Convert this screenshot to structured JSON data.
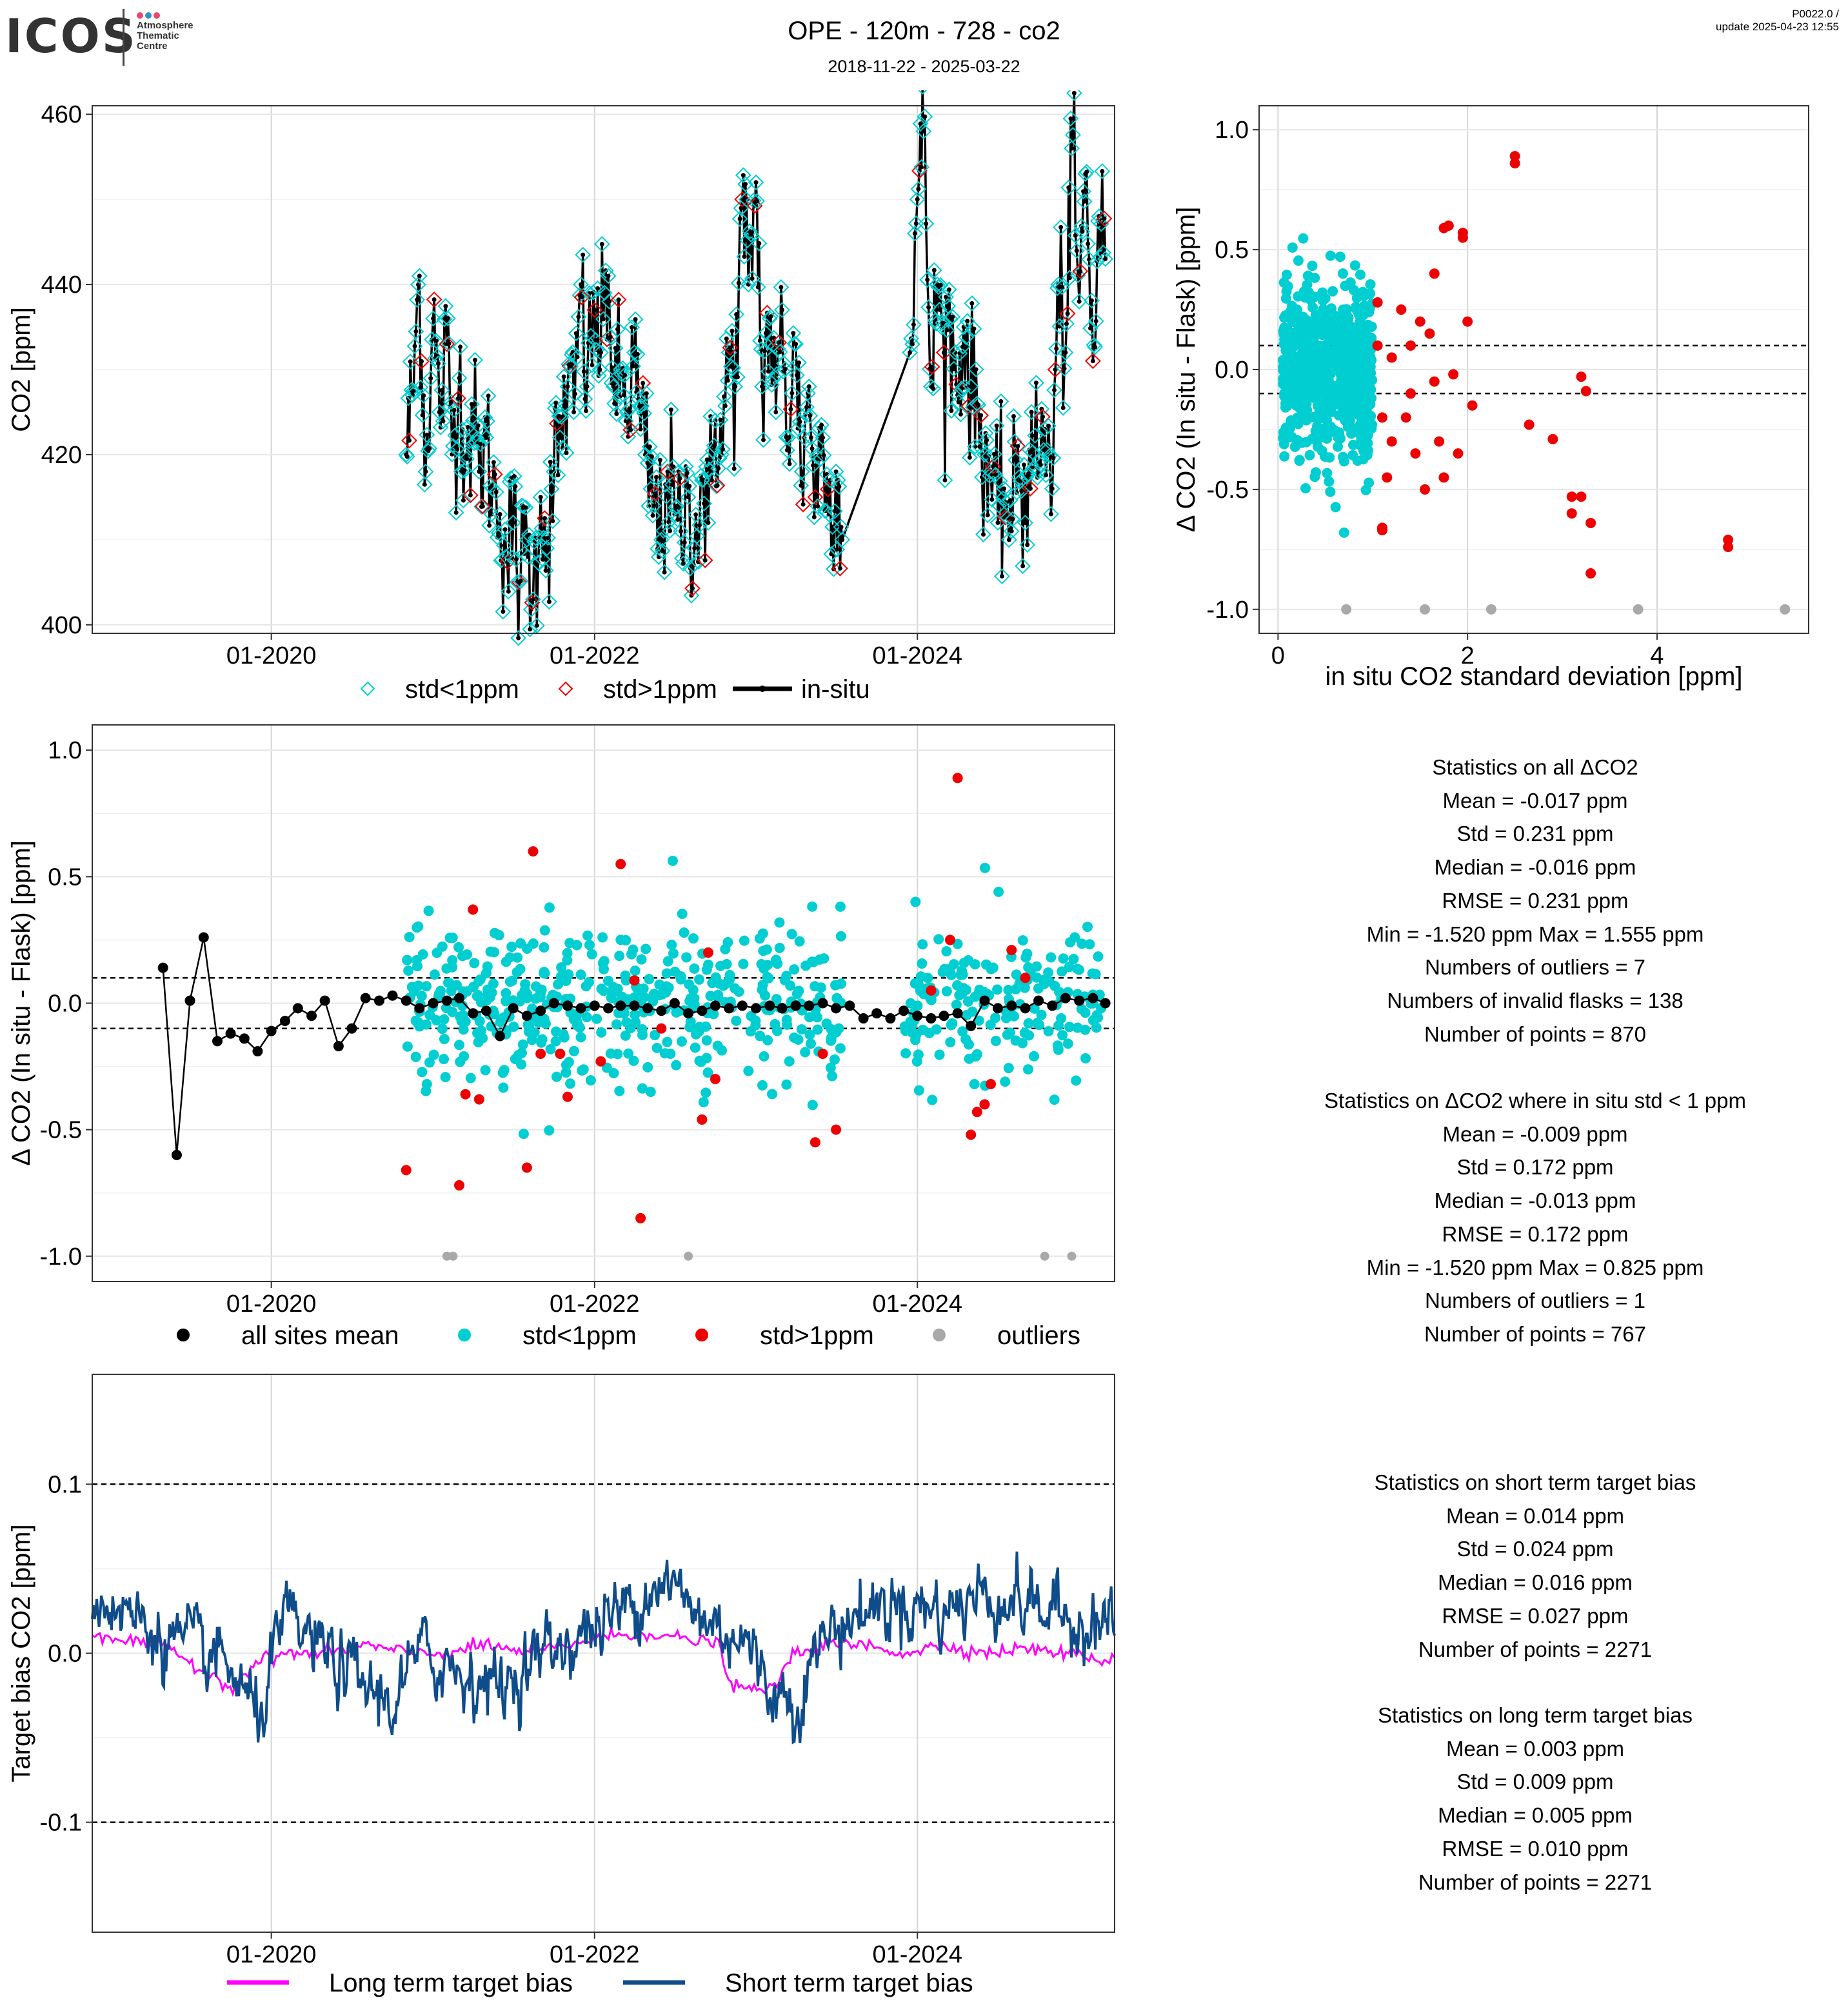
{
  "header": {
    "logo": "ICOS",
    "logo_sub_1": "Atmosphere",
    "logo_sub_2": "Thematic",
    "logo_sub_3": "Centre",
    "title": "OPE - 120m - 728 - co2",
    "dates": "2018-11-22 - 2025-03-22",
    "version": "P0022.0 /",
    "update": "update  2025-04-23 12:55"
  },
  "colors": {
    "std_lt1": "#00CED1",
    "std_gt1": "#EE0000",
    "outlier": "#A9A9A9",
    "insitu": "#000000",
    "long_term": "#FF00FF",
    "short_term": "#0F4C8A"
  },
  "chart_data": [
    {
      "id": "co2_timeseries",
      "type": "line",
      "ylabel": "CO2 [ppm]",
      "xlabel": "",
      "x_ticks": [
        "01-2020",
        "01-2022",
        "01-2024"
      ],
      "y_ticks": [
        "400",
        "420",
        "440",
        "460"
      ],
      "ylim": [
        399,
        461
      ],
      "xlim": [
        "2018-11-22",
        "2025-03-22"
      ],
      "legend": [
        "std<1ppm",
        "std>1ppm",
        "in-situ"
      ],
      "legend_position": "bottom",
      "series": [
        {
          "name": "in-situ",
          "x": [
            "2020-11-01",
            "2020-11-15",
            "2020-12-01",
            "2020-12-15",
            "2021-01-01",
            "2021-01-15",
            "2021-02-01",
            "2021-02-15",
            "2021-03-01",
            "2021-03-15",
            "2021-04-01",
            "2021-04-15",
            "2021-05-01",
            "2021-05-15",
            "2021-06-01",
            "2021-06-15",
            "2021-07-01",
            "2021-07-15",
            "2021-08-01",
            "2021-08-15",
            "2021-09-01",
            "2021-09-15",
            "2021-10-01",
            "2021-10-15",
            "2021-11-01",
            "2021-11-15",
            "2021-12-01",
            "2021-12-15",
            "2022-01-01",
            "2022-01-15",
            "2022-02-01",
            "2022-02-15",
            "2022-03-01",
            "2022-03-15",
            "2022-04-01",
            "2022-04-15",
            "2022-05-01",
            "2022-05-15",
            "2022-06-01",
            "2022-06-15",
            "2022-07-01",
            "2022-07-15",
            "2022-08-01",
            "2022-08-15",
            "2022-09-01",
            "2022-09-15",
            "2022-10-01",
            "2022-10-15",
            "2022-11-01",
            "2022-11-15",
            "2022-12-01",
            "2022-12-15",
            "2023-01-01",
            "2023-01-15",
            "2023-02-01",
            "2023-02-15",
            "2023-03-01",
            "2023-03-15",
            "2023-04-01",
            "2023-04-15",
            "2023-05-01",
            "2023-05-15",
            "2023-06-01",
            "2023-06-15",
            "2023-07-01",
            "2023-07-15",
            "2023-12-15",
            "2024-01-01",
            "2024-01-15",
            "2024-02-01",
            "2024-02-15",
            "2024-03-01",
            "2024-03-15",
            "2024-04-01",
            "2024-04-15",
            "2024-05-01",
            "2024-05-15",
            "2024-06-01",
            "2024-06-15",
            "2024-07-01",
            "2024-07-15",
            "2024-08-01",
            "2024-08-15",
            "2024-09-01",
            "2024-09-15",
            "2024-10-01",
            "2024-10-15",
            "2024-11-01",
            "2024-11-15",
            "2024-12-01",
            "2024-12-15",
            "2025-01-01",
            "2025-01-15",
            "2025-02-01",
            "2025-02-15",
            "2025-03-01"
          ],
          "y": [
            420,
            427,
            441,
            418,
            436,
            425,
            433,
            421,
            429,
            420,
            424,
            418,
            422,
            416,
            413,
            408,
            412,
            405,
            410,
            403,
            415,
            409,
            418,
            422,
            428,
            425,
            440,
            428,
            437,
            432,
            441,
            426,
            430,
            425,
            432,
            423,
            419,
            414,
            410,
            418,
            413,
            411,
            415,
            409,
            417,
            412,
            424,
            420,
            432,
            428,
            450,
            440,
            452,
            428,
            436,
            425,
            437,
            422,
            433,
            418,
            428,
            415,
            422,
            413,
            418,
            410,
            432,
            450,
            458,
            428,
            440,
            432,
            436,
            427,
            435,
            428,
            426,
            420,
            418,
            412,
            416,
            411,
            421,
            412,
            425,
            418,
            423,
            416,
            440,
            432,
            456,
            438,
            453,
            431,
            448,
            443
          ]
        }
      ]
    },
    {
      "id": "delta_vs_std_scatter",
      "type": "scatter",
      "xlabel": "in situ CO2 standard deviation [ppm]",
      "ylabel": "Δ CO2 (In situ - Flask) [ppm]",
      "x_ticks": [
        "0",
        "2",
        "4"
      ],
      "y_ticks": [
        "-1.0",
        "-0.5",
        "0.0",
        "0.5",
        "1.0"
      ],
      "xlim": [
        -0.2,
        5.6
      ],
      "ylim": [
        -1.1,
        1.1
      ],
      "reference_lines": [
        0.1,
        -0.1
      ],
      "series": [
        {
          "name": "std>1ppm",
          "points": [
            [
              1.05,
              0.1
            ],
            [
              1.1,
              -0.2
            ],
            [
              1.15,
              -0.45
            ],
            [
              1.2,
              -0.3
            ],
            [
              1.3,
              0.25
            ],
            [
              1.35,
              -0.2
            ],
            [
              1.4,
              0.1
            ],
            [
              1.45,
              -0.35
            ],
            [
              1.5,
              0.2
            ],
            [
              1.55,
              -0.5
            ],
            [
              1.6,
              0.15
            ],
            [
              1.65,
              -0.05
            ],
            [
              1.7,
              -0.3
            ],
            [
              1.75,
              -0.45
            ],
            [
              1.8,
              0.6
            ],
            [
              1.85,
              -0.02
            ],
            [
              1.9,
              -0.35
            ],
            [
              1.95,
              0.55
            ],
            [
              2.0,
              0.2
            ],
            [
              2.05,
              -0.15
            ],
            [
              1.1,
              -0.67
            ],
            [
              1.2,
              0.05
            ],
            [
              1.4,
              -0.1
            ],
            [
              1.65,
              0.4
            ],
            [
              2.5,
              0.89
            ],
            [
              2.5,
              0.86
            ],
            [
              2.65,
              -0.23
            ],
            [
              2.9,
              -0.29
            ],
            [
              3.1,
              -0.53
            ],
            [
              3.1,
              -0.6
            ],
            [
              3.2,
              -0.53
            ],
            [
              3.2,
              -0.03
            ],
            [
              3.25,
              -0.09
            ],
            [
              3.3,
              -0.64
            ],
            [
              3.3,
              -0.85
            ],
            [
              4.75,
              -0.71
            ],
            [
              4.75,
              -0.74
            ],
            [
              1.75,
              0.59
            ],
            [
              1.95,
              0.57
            ],
            [
              1.1,
              -0.66
            ],
            [
              1.05,
              0.28
            ]
          ]
        },
        {
          "name": "outliers",
          "points": [
            [
              0.72,
              -1.0
            ],
            [
              1.55,
              -1.0
            ],
            [
              2.25,
              -1.0
            ],
            [
              3.8,
              -1.0
            ],
            [
              5.35,
              -1.0
            ]
          ]
        }
      ]
    },
    {
      "id": "delta_timeseries",
      "type": "scatter",
      "ylabel": "Δ CO2 (In situ - Flask) [ppm]",
      "xlabel": "",
      "x_ticks": [
        "01-2020",
        "01-2022",
        "01-2024"
      ],
      "y_ticks": [
        "-1.0",
        "-0.5",
        "0.0",
        "0.5",
        "1.0"
      ],
      "ylim": [
        -1.1,
        1.1
      ],
      "reference_lines": [
        0.1,
        -0.1
      ],
      "legend": [
        "all sites mean",
        "std<1ppm",
        "std>1ppm",
        "outliers"
      ],
      "legend_position": "bottom",
      "series": [
        {
          "name": "all sites mean",
          "x": [
            "2019-05-01",
            "2019-06-01",
            "2019-07-01",
            "2019-08-01",
            "2019-09-01",
            "2019-10-01",
            "2019-11-01",
            "2019-12-01",
            "2020-01-01",
            "2020-02-01",
            "2020-03-01",
            "2020-04-01",
            "2020-05-01",
            "2020-06-01",
            "2020-07-01",
            "2020-08-01",
            "2020-09-01",
            "2020-10-01",
            "2020-11-01",
            "2020-12-01",
            "2021-01-01",
            "2021-02-01",
            "2021-03-01",
            "2021-04-01",
            "2021-05-01",
            "2021-06-01",
            "2021-07-01",
            "2021-08-01",
            "2021-09-01",
            "2021-10-01",
            "2021-11-01",
            "2021-12-01",
            "2022-01-01",
            "2022-02-01",
            "2022-03-01",
            "2022-04-01",
            "2022-05-01",
            "2022-06-01",
            "2022-07-01",
            "2022-08-01",
            "2022-09-01",
            "2022-10-01",
            "2022-11-01",
            "2022-12-01",
            "2023-01-01",
            "2023-02-01",
            "2023-03-01",
            "2023-04-01",
            "2023-05-01",
            "2023-06-01",
            "2023-07-01",
            "2023-08-01",
            "2023-09-01",
            "2023-10-01",
            "2023-11-01",
            "2023-12-01",
            "2024-01-01",
            "2024-02-01",
            "2024-03-01",
            "2024-04-01",
            "2024-05-01",
            "2024-06-01",
            "2024-07-01",
            "2024-08-01",
            "2024-09-01",
            "2024-10-01",
            "2024-11-01",
            "2024-12-01",
            "2025-01-01",
            "2025-02-01",
            "2025-03-01"
          ],
          "y": [
            0.14,
            -0.6,
            0.01,
            0.26,
            -0.15,
            -0.12,
            -0.14,
            -0.19,
            -0.11,
            -0.07,
            -0.02,
            -0.05,
            0.01,
            -0.17,
            -0.1,
            0.02,
            0.01,
            0.03,
            0.01,
            -0.02,
            0.0,
            0.01,
            0.02,
            -0.04,
            -0.03,
            -0.13,
            -0.02,
            -0.05,
            -0.03,
            0.0,
            -0.01,
            -0.02,
            -0.01,
            -0.02,
            -0.01,
            -0.01,
            -0.02,
            -0.03,
            0.0,
            -0.04,
            -0.03,
            -0.01,
            -0.02,
            -0.01,
            -0.02,
            -0.01,
            -0.02,
            -0.01,
            -0.01,
            0.0,
            -0.02,
            -0.01,
            -0.06,
            -0.04,
            -0.06,
            -0.03,
            -0.05,
            -0.06,
            -0.05,
            -0.04,
            -0.09,
            0.01,
            -0.02,
            -0.01,
            -0.02,
            0.01,
            -0.01,
            0.02,
            0.01,
            0.02,
            0.0
          ]
        },
        {
          "name": "std>1ppm",
          "x": [
            "2020-11-01",
            "2021-03-01",
            "2021-03-15",
            "2021-04-01",
            "2021-04-15",
            "2021-08-01",
            "2021-08-15",
            "2021-09-01",
            "2021-10-15",
            "2021-11-01",
            "2022-01-15",
            "2022-03-01",
            "2022-04-01",
            "2022-04-15",
            "2022-06-01",
            "2022-09-01",
            "2022-09-15",
            "2022-10-01",
            "2023-05-15",
            "2023-06-01",
            "2023-07-01",
            "2024-02-01",
            "2024-03-15",
            "2024-04-01",
            "2024-05-01",
            "2024-05-15",
            "2024-06-01",
            "2024-06-15",
            "2024-08-01",
            "2024-09-01"
          ],
          "y": [
            -0.66,
            -0.72,
            -0.36,
            0.37,
            -0.38,
            -0.65,
            0.6,
            -0.2,
            -0.2,
            -0.37,
            -0.23,
            0.55,
            0.09,
            -0.85,
            -0.1,
            -0.46,
            0.2,
            -0.3,
            -0.55,
            -0.2,
            -0.5,
            0.05,
            0.25,
            0.89,
            -0.52,
            -0.43,
            -0.4,
            -0.32,
            0.21,
            0.1
          ]
        },
        {
          "name": "outliers",
          "x": [
            "2021-02-01",
            "2021-02-15",
            "2022-08-01",
            "2024-10-15",
            "2024-12-15"
          ],
          "y": [
            -1.0,
            -1.0,
            -1.0,
            -1.0,
            -1.0
          ]
        }
      ]
    },
    {
      "id": "target_bias",
      "type": "line",
      "ylabel": "Target bias CO2 [ppm]",
      "xlabel": "",
      "x_ticks": [
        "01-2020",
        "01-2022",
        "01-2024"
      ],
      "y_ticks": [
        "-0.1",
        "0.0",
        "0.1"
      ],
      "ylim": [
        -0.165,
        0.165
      ],
      "reference_lines": [
        0.1,
        -0.1
      ],
      "legend": [
        "Long term target bias",
        "Short term target bias"
      ],
      "legend_position": "bottom",
      "series": [
        {
          "name": "Long term target bias",
          "x": [
            "2018-11-22",
            "2019-02-01",
            "2019-05-01",
            "2019-08-01",
            "2019-10-01",
            "2019-12-01",
            "2020-02-01",
            "2020-05-01",
            "2020-08-01",
            "2020-11-01",
            "2021-02-01",
            "2021-05-01",
            "2021-08-01",
            "2021-11-01",
            "2022-02-01",
            "2022-05-01",
            "2022-08-01",
            "2022-10-15",
            "2022-11-01",
            "2023-02-01",
            "2023-04-01",
            "2023-06-01",
            "2023-09-01",
            "2023-12-01",
            "2024-03-01",
            "2024-06-01",
            "2024-09-01",
            "2024-12-01",
            "2025-03-22"
          ],
          "y": [
            0.012,
            0.008,
            0.004,
            -0.01,
            -0.02,
            -0.005,
            0.0,
            0.0,
            0.005,
            0.0,
            0.0,
            0.005,
            0.0,
            0.005,
            0.01,
            0.012,
            0.008,
            0.005,
            -0.02,
            -0.022,
            0.0,
            0.005,
            0.005,
            0.0,
            0.005,
            0.0,
            0.003,
            0.0,
            -0.005
          ]
        },
        {
          "name": "Short term target bias",
          "x": [
            "2018-11-22",
            "2019-02-01",
            "2019-05-01",
            "2019-08-01",
            "2019-10-01",
            "2019-12-01",
            "2020-02-01",
            "2020-05-01",
            "2020-08-01",
            "2020-10-01",
            "2020-12-01",
            "2021-03-01",
            "2021-06-01",
            "2021-09-01",
            "2021-12-01",
            "2022-03-01",
            "2022-06-01",
            "2022-09-01",
            "2022-12-01",
            "2023-02-01",
            "2023-04-01",
            "2023-06-01",
            "2023-09-01",
            "2023-12-01",
            "2024-03-01",
            "2024-06-01",
            "2024-09-01",
            "2024-12-01",
            "2025-03-22"
          ],
          "y": [
            0.035,
            0.025,
            0.01,
            0.0,
            -0.01,
            -0.04,
            0.02,
            0.0,
            -0.02,
            -0.03,
            0.0,
            -0.01,
            -0.02,
            0.0,
            0.01,
            0.025,
            0.045,
            0.02,
            0.01,
            -0.02,
            -0.03,
            0.01,
            0.025,
            0.03,
            0.025,
            0.035,
            0.03,
            0.02,
            0.02
          ]
        }
      ]
    }
  ],
  "stats": {
    "all": {
      "title": "Statistics on all ΔCO2",
      "lines": [
        "Mean =  -0.017 ppm",
        "Std =  0.231 ppm",
        "Median =  -0.016 ppm",
        "RMSE =  0.231 ppm",
        "Min =  -1.520 ppm Max =  1.555 ppm",
        "Numbers of outliers =  7",
        "Numbers of invalid flasks =  138",
        "Number of points =  870"
      ]
    },
    "std1": {
      "title": "Statistics on ΔCO2 where in situ std < 1 ppm",
      "lines": [
        "Mean =  -0.009 ppm",
        "Std =  0.172 ppm",
        "Median =  -0.013 ppm",
        "RMSE =  0.172 ppm",
        "Min =  -1.520 ppm Max =  0.825 ppm",
        "Numbers of outliers =  1",
        "Number of points =  767"
      ]
    },
    "short": {
      "title": "Statistics on short term target bias",
      "lines": [
        "Mean =  0.014 ppm",
        "Std =  0.024 ppm",
        "Median =  0.016 ppm",
        "RMSE =  0.027 ppm",
        "Number of points =  2271"
      ]
    },
    "long": {
      "title": "Statistics on long term target bias",
      "lines": [
        "Mean =  0.003 ppm",
        "Std =  0.009 ppm",
        "Median =  0.005 ppm",
        "RMSE =  0.010 ppm",
        "Number of points =  2271"
      ]
    }
  }
}
